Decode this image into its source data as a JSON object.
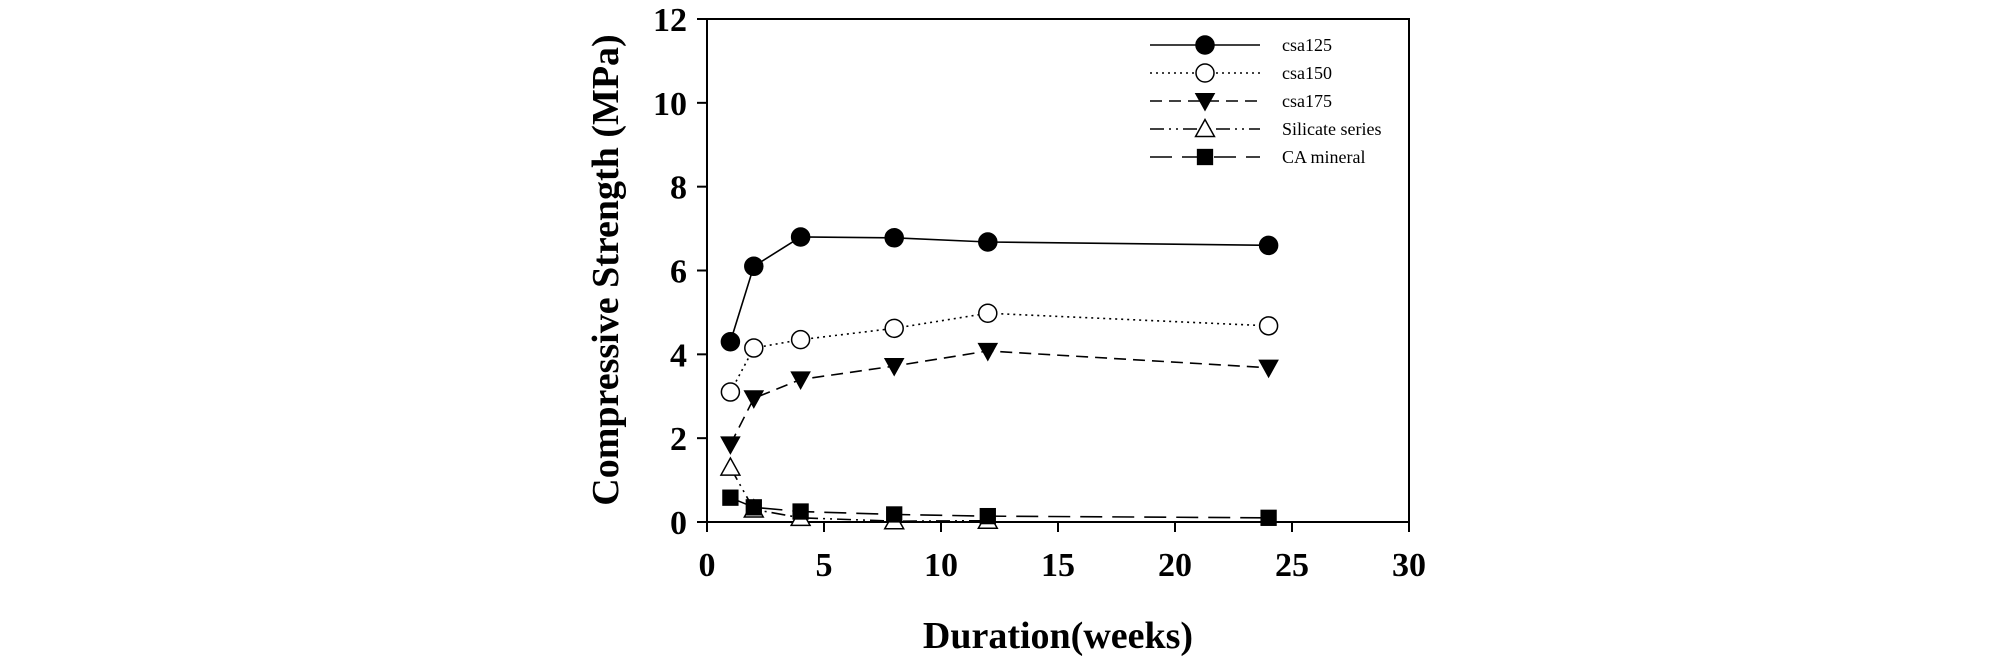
{
  "chart_data": {
    "type": "line",
    "title": "",
    "xlabel": "Duration(weeks)",
    "ylabel": "Compressive Strength (MPa)",
    "xlim": [
      0,
      30
    ],
    "ylim": [
      0,
      12
    ],
    "xticks": [
      0,
      5,
      10,
      15,
      20,
      25,
      30
    ],
    "yticks": [
      0,
      2,
      4,
      6,
      8,
      10,
      12
    ],
    "grid": false,
    "legend_position": "top-right inside plot",
    "x": [
      1,
      2,
      4,
      8,
      12,
      24
    ],
    "series": [
      {
        "name": "csa125",
        "values": [
          4.3,
          6.1,
          6.8,
          6.78,
          6.68,
          6.6
        ],
        "marker": "filled-circle",
        "line": "solid",
        "color": "#000000"
      },
      {
        "name": "csa150",
        "values": [
          3.1,
          4.15,
          4.35,
          4.62,
          4.98,
          4.68
        ],
        "marker": "open-circle",
        "line": "dotted",
        "color": "#000000"
      },
      {
        "name": "csa175",
        "values": [
          1.85,
          2.95,
          3.4,
          3.72,
          4.08,
          3.68
        ],
        "marker": "filled-triangle-down",
        "line": "dashed",
        "color": "#000000"
      },
      {
        "name": "Silicate series",
        "values": [
          1.3,
          0.3,
          0.1,
          0.02,
          0.03,
          null
        ],
        "marker": "open-triangle-up",
        "line": "dash-dot-dot",
        "color": "#000000"
      },
      {
        "name": "CA mineral",
        "values": [
          0.58,
          0.35,
          0.25,
          0.18,
          0.14,
          0.1
        ],
        "marker": "filled-square",
        "line": "long-dash",
        "color": "#000000"
      }
    ]
  }
}
